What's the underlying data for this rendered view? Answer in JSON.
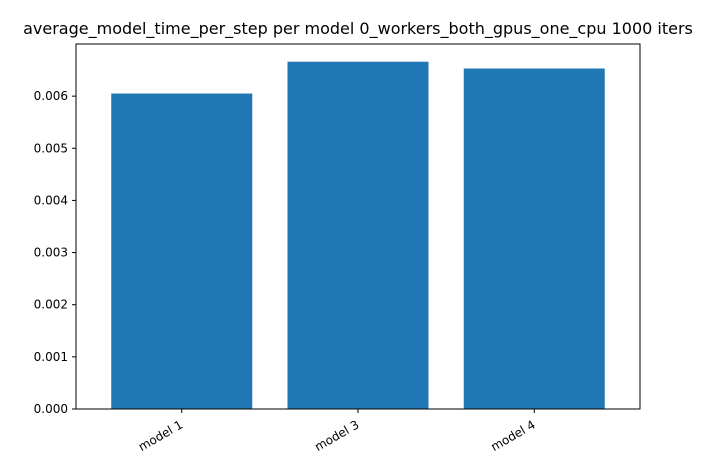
{
  "chart_data": {
    "type": "bar",
    "title": "average_model_time_per_step per model 0_workers_both_gpus_one_cpu 1000 iters",
    "xlabel": "",
    "ylabel": "",
    "categories": [
      "model 1",
      "model 3",
      "model 4"
    ],
    "values": [
      0.00605,
      0.00666,
      0.00653
    ],
    "ylim": [
      0,
      0.007
    ],
    "yticks": [
      0.0,
      0.001,
      0.002,
      0.003,
      0.004,
      0.005,
      0.006
    ],
    "ytick_labels": [
      "0.000",
      "0.001",
      "0.002",
      "0.003",
      "0.004",
      "0.005",
      "0.006"
    ],
    "bar_color": "#1f77b4",
    "grid": false,
    "legend": "none"
  }
}
